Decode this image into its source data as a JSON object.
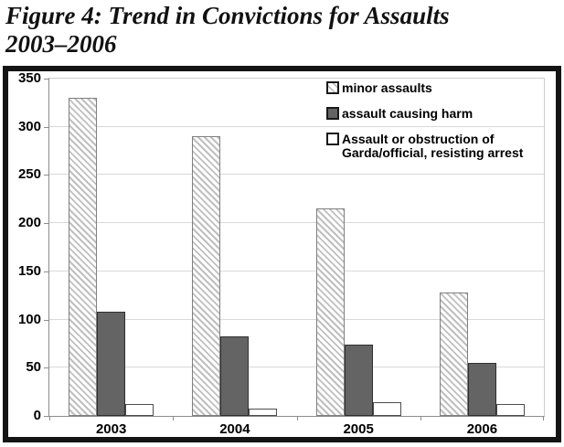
{
  "figure_title": {
    "line1": "Figure 4: Trend in Convictions for Assaults",
    "line2": "2003–2006"
  },
  "chart_data": {
    "type": "bar",
    "title": "Figure 4: Trend in Convictions for Assaults 2003–2006",
    "categories": [
      "2003",
      "2004",
      "2005",
      "2006"
    ],
    "series": [
      {
        "name": "minor assaults",
        "label_lines": [
          "minor assaults"
        ],
        "values": [
          330,
          290,
          215,
          128
        ],
        "swatch": {
          "pattern": "diagonal-hatch",
          "fill": "#ffffff",
          "stripe": "#bfbfbf",
          "border": "#7f7f7f"
        }
      },
      {
        "name": "assault causing harm",
        "label_lines": [
          "assault causing harm"
        ],
        "values": [
          108,
          83,
          74,
          55
        ],
        "swatch": {
          "pattern": "solid",
          "fill": "#646464",
          "border": "#2f2f2f"
        }
      },
      {
        "name": "Assault or obstruction of Garda/official, resisting arrest",
        "label_lines": [
          "Assault or obstruction of",
          "Garda/official, resisting arrest"
        ],
        "values": [
          12,
          8,
          14,
          12
        ],
        "swatch": {
          "pattern": "solid",
          "fill": "#ffffff",
          "border": "#4c4c4c"
        }
      }
    ],
    "xlabel": "",
    "ylabel": "",
    "ylim": [
      0,
      350
    ],
    "ytick_step": 50,
    "grid": "horizontal",
    "legend_position": "top-right",
    "colors": {
      "gridline": "#d9d9d9",
      "axis": "#8c8c8c",
      "frame": "#141414",
      "plot_border": "#cccccc",
      "legend_key_border": "#1a1a1a",
      "text": "#000000"
    }
  }
}
